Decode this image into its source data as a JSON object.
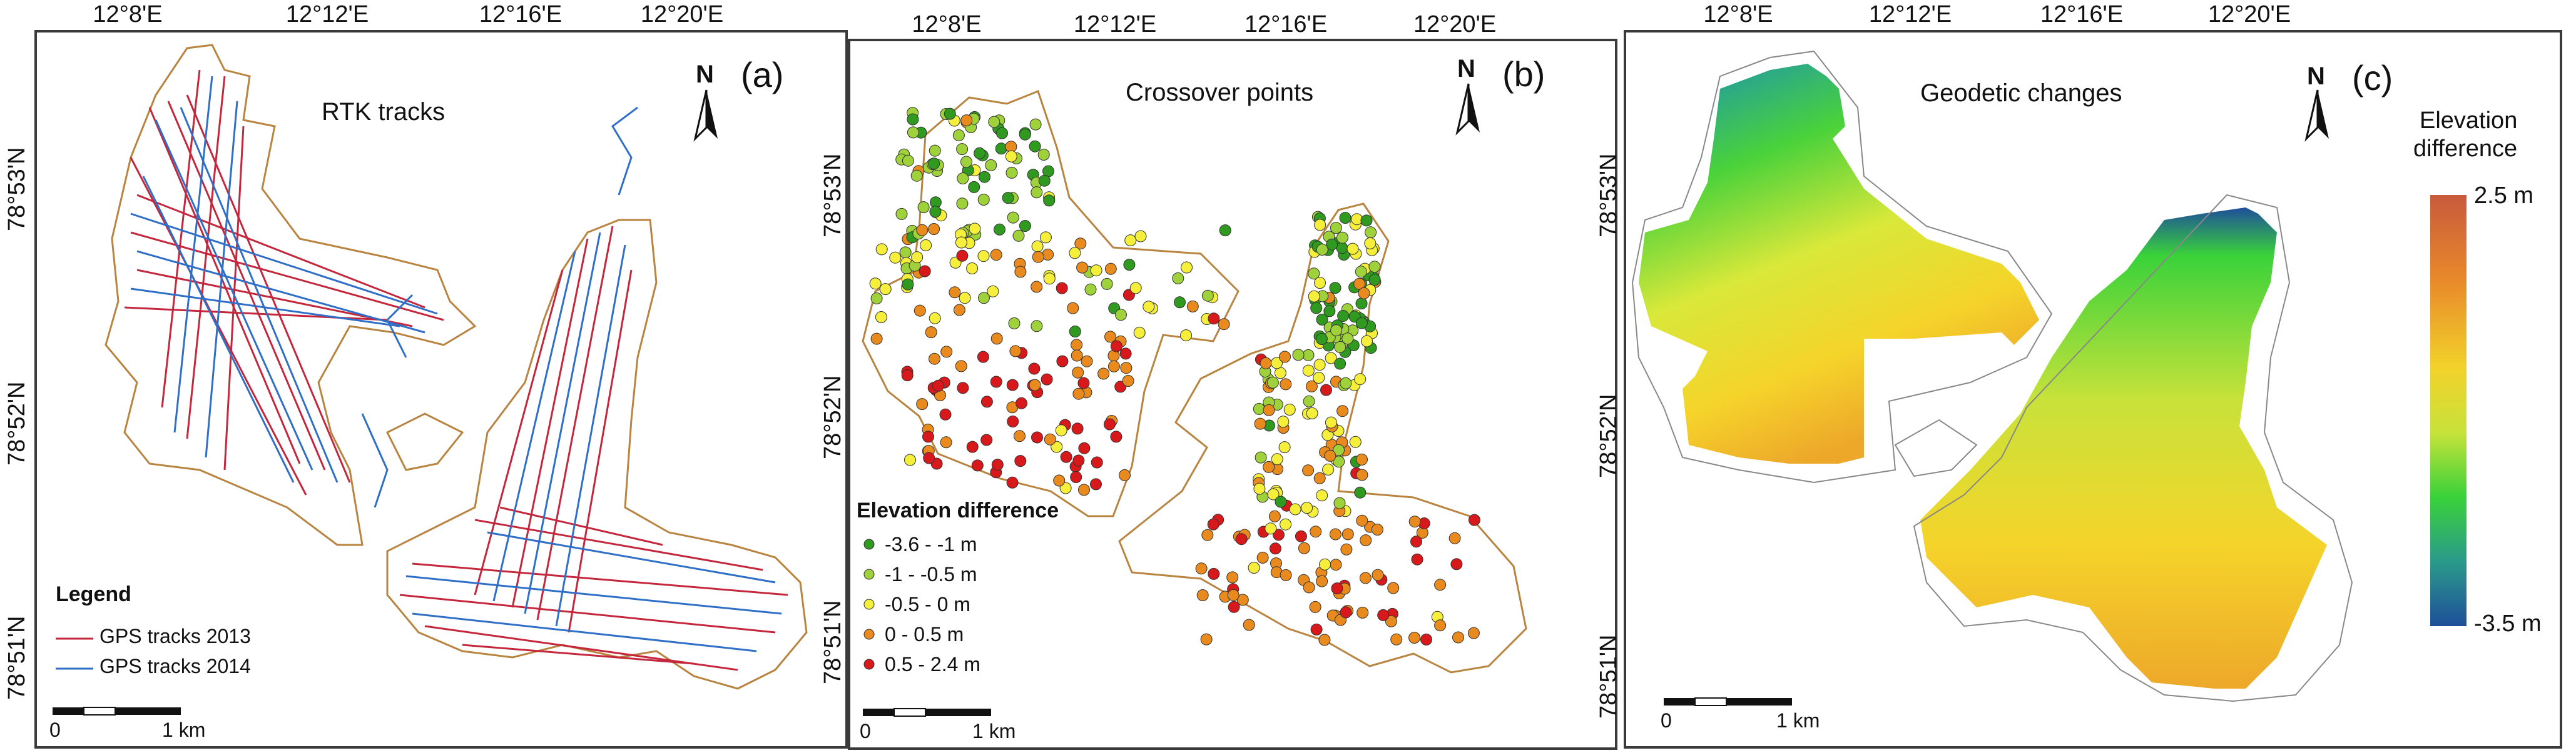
{
  "panels": {
    "a": {
      "title": "RTK tracks",
      "letter": "(a)",
      "north": "N",
      "lon_ticks": [
        "12°8'E",
        "12°12'E",
        "12°16'E",
        "12°20'E"
      ],
      "lat_ticks": [
        "78°53'N",
        "78°52'N",
        "78°51'N"
      ],
      "legend": {
        "title": "Legend",
        "items": [
          {
            "label": "GPS tracks 2013",
            "color": "#c4263c"
          },
          {
            "label": "GPS tracks 2014",
            "color": "#2f6fc7"
          }
        ]
      },
      "scale": {
        "zero": "0",
        "end": "1 km"
      }
    },
    "b": {
      "title": "Crossover points",
      "letter": "(b)",
      "north": "N",
      "lon_ticks": [
        "12°8'E",
        "12°12'E",
        "12°16'E",
        "12°20'E"
      ],
      "lat_ticks": [
        "78°53'N",
        "78°52'N",
        "78°51'N"
      ],
      "legend": {
        "title": "Elevation difference",
        "items": [
          {
            "label": "-3.6 - -1 m",
            "color": "#2f9a1f"
          },
          {
            "label": "-1 - -0.5 m",
            "color": "#9fd13a"
          },
          {
            "label": "-0.5 - 0 m",
            "color": "#f5ef3c"
          },
          {
            "label": "0 - 0.5 m",
            "color": "#e88a1e"
          },
          {
            "label": "0.5 - 2.4 m",
            "color": "#d8191c"
          }
        ]
      },
      "scale": {
        "zero": "0",
        "end": "1 km"
      }
    },
    "c": {
      "title": "Geodetic changes",
      "letter": "(c)",
      "north": "N",
      "lon_ticks": [
        "12°8'E",
        "12°12'E",
        "12°16'E",
        "12°20'E"
      ],
      "lat_ticks": [
        "78°53'N",
        "78°52'N",
        "78°51'N"
      ],
      "colorbar": {
        "title_line1": "Elevation",
        "title_line2": "difference",
        "max_label": "2.5 m",
        "min_label": "-3.5 m",
        "colors": [
          "#c85a3c",
          "#e88a2a",
          "#f2d22a",
          "#c8e23a",
          "#3ad23a",
          "#2a9a8a",
          "#1e4f9a"
        ]
      },
      "scale": {
        "zero": "0",
        "end": "1 km"
      }
    }
  },
  "colors": {
    "outline": "#b88440",
    "frame": "#3a3a3a"
  }
}
